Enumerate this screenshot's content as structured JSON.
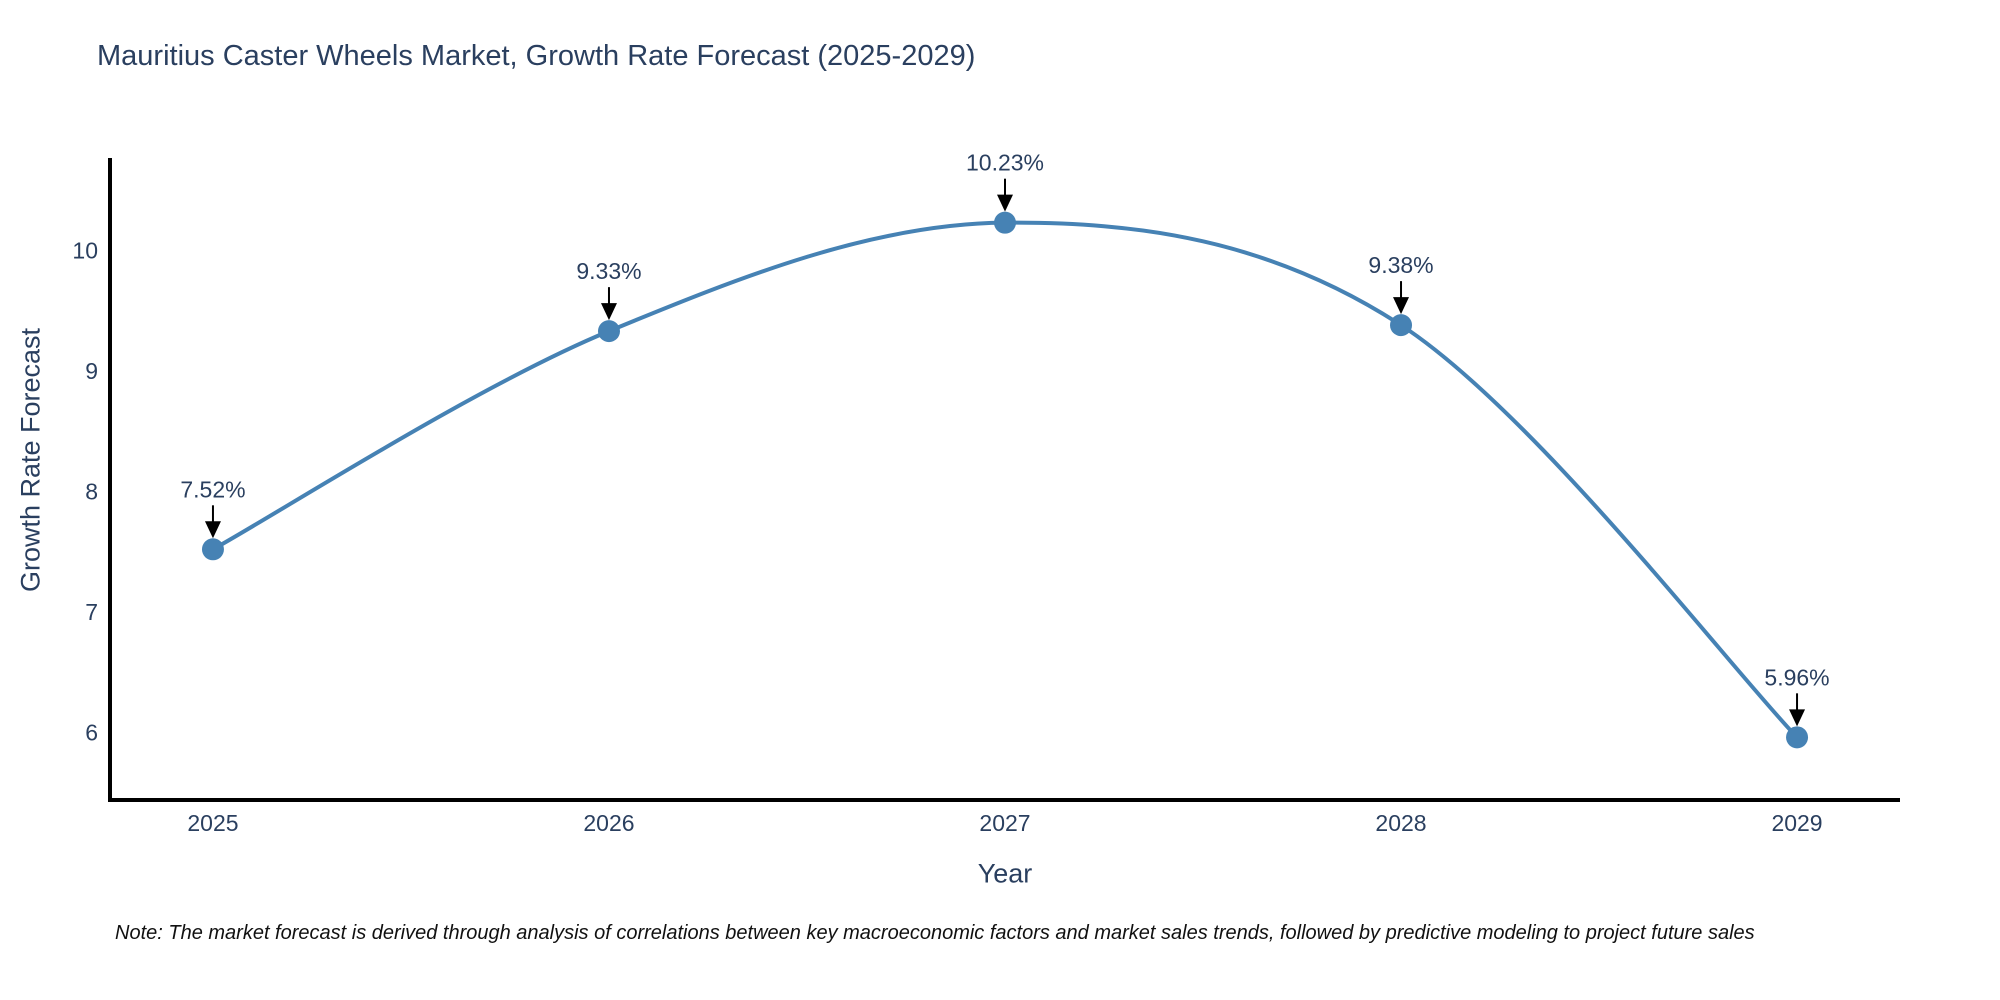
{
  "chart": {
    "title": "Mauritius Caster Wheels Market, Growth Rate Forecast (2025-2029)",
    "xlabel": "Year",
    "ylabel": "Growth Rate Forecast",
    "note": "Note: The market forecast is derived through analysis of correlations between key macroeconomic factors and market sales trends, followed by predictive modeling to project future sales"
  },
  "chart_data": {
    "type": "line",
    "title": "Mauritius Caster Wheels Market, Growth Rate Forecast (2025-2029)",
    "xlabel": "Year",
    "ylabel": "Growth Rate Forecast",
    "x": [
      2025,
      2026,
      2027,
      2028,
      2029
    ],
    "y": [
      7.52,
      9.33,
      10.23,
      9.38,
      5.96
    ],
    "point_labels": [
      "7.52%",
      "9.33%",
      "10.23%",
      "9.38%",
      "5.96%"
    ],
    "xticks": [
      "2025",
      "2026",
      "2027",
      "2028",
      "2029"
    ],
    "yticks": [
      6,
      7,
      8,
      9,
      10
    ],
    "xlim": [
      2024.74,
      2029.26
    ],
    "ylim": [
      5.44,
      10.75
    ],
    "grid": false,
    "legend": "none",
    "line_shape": "spline",
    "line_color": "#4682b4",
    "marker_color": "#4682b4",
    "axis_color": "#000000",
    "text_color": "#2a3f5f",
    "annotation_color": "#2a3f5f",
    "arrow_color": "#000000"
  }
}
